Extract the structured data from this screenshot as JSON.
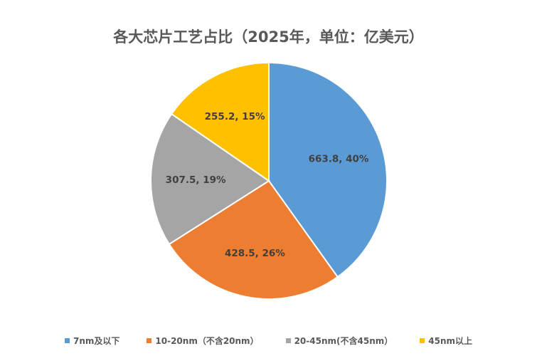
{
  "chart_data": {
    "type": "pie",
    "title": "各大芯片工艺占比（2025年，单位：亿美元）",
    "categories": [
      "7nm及以下",
      "10-20nm（不含20nm）",
      "20-45nm(不含45nm）",
      "45nm以上"
    ],
    "values": [
      663.8,
      428.5,
      307.5,
      255.2
    ],
    "percent_labels": [
      "40%",
      "26%",
      "19%",
      "15%"
    ],
    "data_labels": [
      "663.8, 40%",
      "428.5, 26%",
      "307.5, 19%",
      "255.2, 15%"
    ],
    "colors": [
      "#5B9BD5",
      "#ED7D31",
      "#A5A5A5",
      "#FFC000"
    ],
    "legend_position": "bottom",
    "start_angle": "12 o'clock",
    "direction": "clockwise"
  }
}
